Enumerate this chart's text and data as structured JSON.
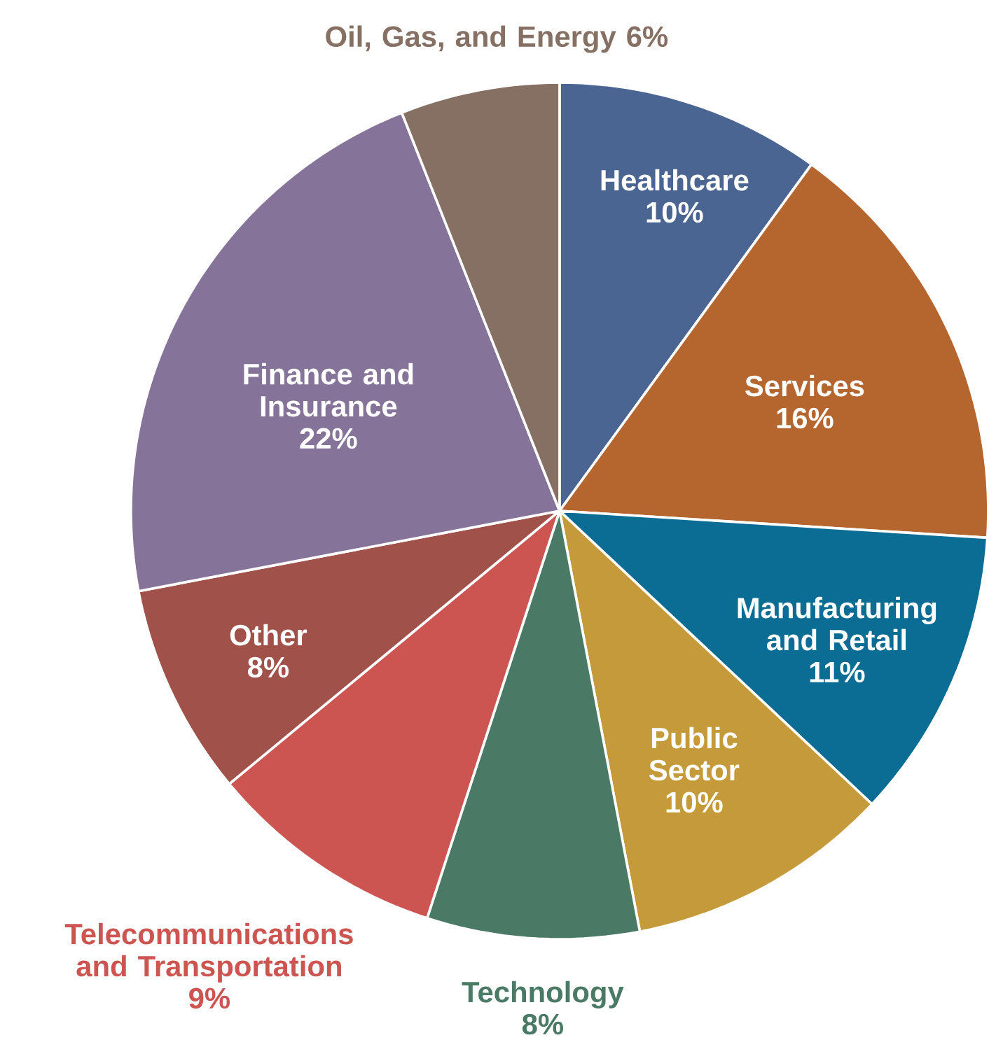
{
  "chart_data": {
    "type": "pie",
    "categories": [
      "Healthcare",
      "Services",
      "Manufacturing and Retail",
      "Public Sector",
      "Technology",
      "Telecommunications and Transportation",
      "Other",
      "Finance and Insurance",
      "Oil, Gas, and Energy"
    ],
    "values": [
      10,
      16,
      11,
      10,
      8,
      9,
      8,
      22,
      6
    ],
    "value_labels": [
      "10%",
      "16%",
      "11%",
      "10%",
      "8%",
      "9%",
      "8%",
      "22%",
      "6%"
    ],
    "colors": [
      "#4a6591",
      "#b5652e",
      "#0b6c94",
      "#c49a3a",
      "#4a7a66",
      "#cc5552",
      "#a0524a",
      "#857399",
      "#857063"
    ]
  }
}
